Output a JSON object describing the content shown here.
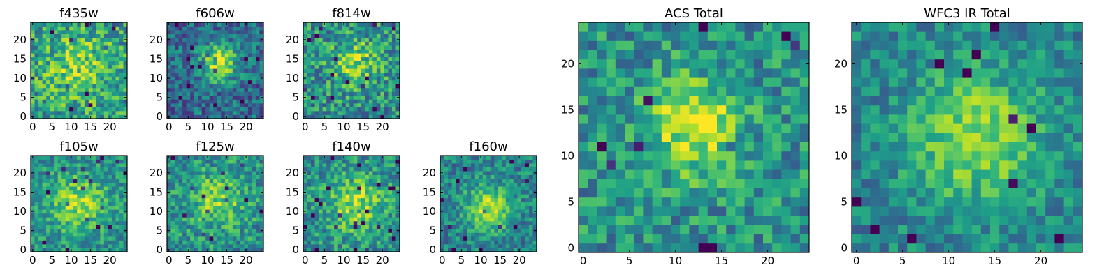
{
  "chart_data": [
    {
      "type": "heatmap",
      "title": "f435w",
      "colormap": "viridis",
      "grid": false,
      "shape": [
        25,
        25
      ],
      "xlim": [
        0,
        24
      ],
      "ylim": [
        0,
        24
      ],
      "xticks": [
        "0",
        "5",
        "10",
        "15",
        "20"
      ],
      "yticks": [
        "0",
        "5",
        "10",
        "15",
        "20"
      ],
      "seed": 11,
      "blob": {
        "x": 12,
        "y": 13,
        "r": 6,
        "amp": 0.25
      },
      "noise": 0.55,
      "base": 0.55
    },
    {
      "type": "heatmap",
      "title": "f606w",
      "colormap": "viridis",
      "grid": false,
      "shape": [
        25,
        25
      ],
      "xlim": [
        0,
        24
      ],
      "ylim": [
        0,
        24
      ],
      "xticks": [
        "0",
        "5",
        "10",
        "15",
        "20"
      ],
      "yticks": [
        "0",
        "5",
        "10",
        "15",
        "20"
      ],
      "seed": 23,
      "blob": {
        "x": 13,
        "y": 14,
        "r": 3.5,
        "amp": 0.55
      },
      "noise": 0.45,
      "base": 0.35
    },
    {
      "type": "heatmap",
      "title": "f814w",
      "colormap": "viridis",
      "grid": false,
      "shape": [
        25,
        25
      ],
      "xlim": [
        0,
        24
      ],
      "ylim": [
        0,
        24
      ],
      "xticks": [
        "0",
        "5",
        "10",
        "15",
        "20"
      ],
      "yticks": [
        "0",
        "5",
        "10",
        "15",
        "20"
      ],
      "seed": 37,
      "blob": {
        "x": 13,
        "y": 14,
        "r": 4,
        "amp": 0.35
      },
      "noise": 0.55,
      "base": 0.5
    },
    {
      "type": "heatmap",
      "title": "f105w",
      "colormap": "viridis",
      "grid": false,
      "shape": [
        25,
        25
      ],
      "xlim": [
        0,
        24
      ],
      "ylim": [
        0,
        24
      ],
      "xticks": [
        "0",
        "5",
        "10",
        "15",
        "20"
      ],
      "yticks": [
        "0",
        "5",
        "10",
        "15",
        "20"
      ],
      "seed": 41,
      "blob": {
        "x": 12,
        "y": 12,
        "r": 5,
        "amp": 0.35
      },
      "noise": 0.4,
      "base": 0.5
    },
    {
      "type": "heatmap",
      "title": "f125w",
      "colormap": "viridis",
      "grid": false,
      "shape": [
        25,
        25
      ],
      "xlim": [
        0,
        24
      ],
      "ylim": [
        0,
        24
      ],
      "xticks": [
        "0",
        "5",
        "10",
        "15",
        "20"
      ],
      "yticks": [
        "0",
        "5",
        "10",
        "15",
        "20"
      ],
      "seed": 53,
      "blob": {
        "x": 13,
        "y": 13,
        "r": 5,
        "amp": 0.3
      },
      "noise": 0.45,
      "base": 0.5
    },
    {
      "type": "heatmap",
      "title": "f140w",
      "colormap": "viridis",
      "grid": false,
      "shape": [
        25,
        25
      ],
      "xlim": [
        0,
        24
      ],
      "ylim": [
        0,
        24
      ],
      "xticks": [
        "0",
        "5",
        "10",
        "15",
        "20"
      ],
      "yticks": [
        "0",
        "5",
        "10",
        "15",
        "20"
      ],
      "seed": 67,
      "blob": {
        "x": 13,
        "y": 12,
        "r": 5,
        "amp": 0.35
      },
      "noise": 0.45,
      "base": 0.5
    },
    {
      "type": "heatmap",
      "title": "f160w",
      "colormap": "viridis",
      "grid": false,
      "shape": [
        25,
        25
      ],
      "xlim": [
        0,
        24
      ],
      "ylim": [
        0,
        24
      ],
      "xticks": [
        "0",
        "5",
        "10",
        "15",
        "20"
      ],
      "yticks": [
        "0",
        "5",
        "10",
        "15",
        "20"
      ],
      "seed": 79,
      "blob": {
        "x": 12,
        "y": 11,
        "r": 4,
        "amp": 0.45
      },
      "noise": 0.4,
      "base": 0.45
    },
    {
      "type": "heatmap",
      "title": "ACS Total",
      "colormap": "viridis",
      "grid": false,
      "shape": [
        25,
        25
      ],
      "xlim": [
        0,
        24
      ],
      "ylim": [
        0,
        24
      ],
      "xticks": [
        "0",
        "5",
        "10",
        "15",
        "20"
      ],
      "yticks": [
        "0",
        "5",
        "10",
        "15",
        "20"
      ],
      "seed": 97,
      "blob": {
        "x": 12,
        "y": 13,
        "r": 3.5,
        "amp": 0.45
      },
      "noise": 0.45,
      "base": 0.5
    },
    {
      "type": "heatmap",
      "title": "WFC3 IR Total",
      "colormap": "viridis",
      "grid": false,
      "shape": [
        25,
        25
      ],
      "xlim": [
        0,
        24
      ],
      "ylim": [
        0,
        24
      ],
      "xticks": [
        "0",
        "5",
        "10",
        "15",
        "20"
      ],
      "yticks": [
        "0",
        "5",
        "10",
        "15",
        "20"
      ],
      "seed": 113,
      "blob": {
        "x": 13,
        "y": 12,
        "r": 5,
        "amp": 0.4
      },
      "noise": 0.35,
      "base": 0.45
    }
  ]
}
